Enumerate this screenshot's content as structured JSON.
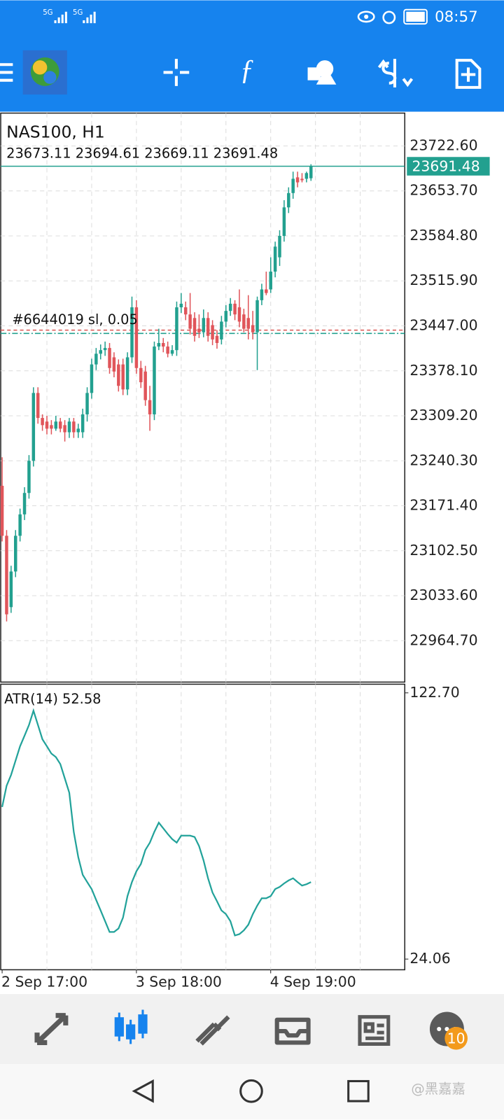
{
  "status_bar": {
    "network": [
      "5G",
      "5G"
    ],
    "time": "08:57"
  },
  "chart_data": [
    {
      "type": "candlestick",
      "title": "NAS100, H1",
      "open": [
        23202.0,
        23125.4,
        23016.1,
        23070.7,
        23125.4,
        23158.2,
        23191.0,
        23240.3,
        23344.2,
        23305.9,
        23300.4,
        23294.9,
        23289.5,
        23300.4,
        23294.9,
        23284.0,
        23300.4,
        23284.0,
        23284.0,
        23311.4,
        23344.2,
        23387.9,
        23404.3,
        23409.8,
        23413.1,
        23398.8,
        23387.9,
        23387.9,
        23349.6,
        23398.8,
        23475.4,
        23382.4,
        23377.0,
        23333.2,
        23311.4,
        23415.3,
        23420.7,
        23415.3,
        23404.3,
        23409.8,
        23475.4,
        23475.4,
        23464.5,
        23459.0,
        23442.6,
        23437.1,
        23459.0,
        23448.1,
        23431.7,
        23426.2,
        23453.5,
        23469.9,
        23480.9,
        23475.4,
        23464.5,
        23459.0,
        23448.1,
        23437.1,
        23486.3,
        23502.8,
        23502.8,
        23530.1,
        23552.0,
        23584.8,
        23628.5,
        23650.4,
        23674.5,
        23672.3,
        23672.3,
        23673.11
      ],
      "high": [
        23245.7,
        23134.2,
        23079.5,
        23134.2,
        23167.0,
        23199.8,
        23249.0,
        23352.9,
        23352.9,
        23311.4,
        23309.2,
        23302.6,
        23309.2,
        23305.9,
        23302.6,
        23305.9,
        23305.9,
        23297.1,
        23320.1,
        23352.9,
        23396.7,
        23413.1,
        23418.5,
        23422.9,
        23420.7,
        23406.5,
        23395.6,
        23396.7,
        23406.5,
        23491.8,
        23486.3,
        23393.4,
        23385.7,
        23355.1,
        23422.9,
        23442.6,
        23428.4,
        23422.9,
        23417.4,
        23484.2,
        23497.3,
        23484.2,
        23497.3,
        23467.8,
        23464.5,
        23472.1,
        23467.8,
        23455.7,
        23440.4,
        23462.3,
        23478.7,
        23489.6,
        23486.3,
        23502.8,
        23473.2,
        23494.0,
        23469.9,
        23491.8,
        23511.5,
        23530.1,
        23552.0,
        23576.0,
        23593.5,
        23639.5,
        23659.2,
        23683.2,
        23683.2,
        23681.0,
        23683.2,
        23694.61
      ],
      "low": [
        23116.7,
        22994.2,
        23007.3,
        23062.0,
        23116.7,
        23149.5,
        23182.3,
        23231.5,
        23297.1,
        23286.2,
        23280.7,
        23280.7,
        23286.2,
        23284.0,
        23269.8,
        23275.3,
        23275.3,
        23275.3,
        23275.3,
        23300.4,
        23335.4,
        23379.2,
        23395.6,
        23401.0,
        23373.7,
        23368.2,
        23346.4,
        23340.9,
        23340.9,
        23390.1,
        23373.7,
        23351.8,
        23324.5,
        23286.2,
        23302.6,
        23409.8,
        23406.5,
        23398.8,
        23401.0,
        23401.0,
        23466.7,
        23455.7,
        23433.8,
        23422.9,
        23428.4,
        23429.5,
        23422.9,
        23417.4,
        23412.0,
        23418.5,
        23444.8,
        23462.3,
        23455.7,
        23444.8,
        23437.1,
        23426.2,
        23426.2,
        23379.2,
        23478.7,
        23494.0,
        23497.3,
        23521.3,
        23538.8,
        23576.0,
        23619.8,
        23641.7,
        23659.2,
        23666.8,
        23666.8,
        23669.11
      ],
      "close": [
        23125.4,
        23005.1,
        23070.7,
        23125.4,
        23158.2,
        23191.0,
        23240.3,
        23344.2,
        23305.9,
        23294.9,
        23289.5,
        23289.5,
        23300.4,
        23289.5,
        23284.0,
        23300.4,
        23284.0,
        23289.5,
        23311.4,
        23344.2,
        23387.9,
        23404.3,
        23409.8,
        23413.1,
        23382.4,
        23377.0,
        23355.1,
        23349.6,
        23398.8,
        23475.4,
        23382.4,
        23360.6,
        23333.2,
        23311.4,
        23415.3,
        23420.7,
        23415.3,
        23404.3,
        23409.8,
        23475.4,
        23480.9,
        23464.5,
        23442.6,
        23431.7,
        23437.1,
        23459.0,
        23431.7,
        23426.2,
        23420.7,
        23453.5,
        23469.9,
        23480.9,
        23464.5,
        23453.5,
        23442.6,
        23442.6,
        23437.1,
        23486.3,
        23502.8,
        23497.3,
        23530.1,
        23568.4,
        23584.8,
        23628.5,
        23650.4,
        23672.3,
        23666.8,
        23670.1,
        23681.0,
        23691.48
      ],
      "up_color": "#22a08f",
      "down_color": "#e0555a",
      "ylim": [
        22901.3,
        23772.9
      ],
      "yticks": [
        {
          "value": 23722.6,
          "label": "23722.60"
        },
        {
          "value": 23653.7,
          "label": "23653.70"
        },
        {
          "value": 23584.8,
          "label": "23584.80"
        },
        {
          "value": 23515.9,
          "label": "23515.90"
        },
        {
          "value": 23447,
          "label": "23447.00"
        },
        {
          "value": 23378.1,
          "label": "23378.10"
        },
        {
          "value": 23309.2,
          "label": "23309.20"
        },
        {
          "value": 23240.3,
          "label": "23240.30"
        },
        {
          "value": 23171.4,
          "label": "23171.40"
        },
        {
          "value": 23102.5,
          "label": "23102.50"
        },
        {
          "value": 23033.6,
          "label": "23033.60"
        },
        {
          "value": 22964.7,
          "label": "22964.70"
        }
      ],
      "grid": true,
      "annotation": "#6644019 sl, 0.05",
      "levels": [
        {
          "value": 23440.4,
          "color": "#d9534f"
        },
        {
          "value": 23435.4,
          "color": "#22a08f"
        }
      ]
    },
    {
      "type": "line",
      "title": "ATR(14)",
      "categories": [
        "2 Sep 17:00",
        null,
        null,
        null,
        null,
        null,
        null,
        null,
        null,
        null,
        null,
        null,
        null,
        null,
        null,
        null,
        null,
        null,
        null,
        null,
        null,
        null,
        null,
        null,
        null,
        null,
        null,
        null,
        null,
        null,
        "3 Sep 18:00",
        null,
        null,
        null,
        null,
        null,
        null,
        null,
        null,
        null,
        null,
        null,
        null,
        null,
        null,
        null,
        null,
        null,
        null,
        null,
        null,
        null,
        null,
        null,
        null,
        null,
        null,
        null,
        null,
        null,
        "4 Sep 19:00",
        null,
        null,
        null,
        null,
        null,
        null,
        null,
        null,
        null
      ],
      "values": [
        80.4,
        88.3,
        92.3,
        97.6,
        102.9,
        106.8,
        110.8,
        116.1,
        110.8,
        105.5,
        102.9,
        100.2,
        98.9,
        96.3,
        91.0,
        85.7,
        71.2,
        61.9,
        55.3,
        52.6,
        50.0,
        46.0,
        42.1,
        38.1,
        34.1,
        34.1,
        35.4,
        39.4,
        47.4,
        52.6,
        56.6,
        59.3,
        64.5,
        67.2,
        71.2,
        74.6,
        72.5,
        70.4,
        68.5,
        67.2,
        69.8,
        69.8,
        69.8,
        69.3,
        65.9,
        60.6,
        54.0,
        48.7,
        45.5,
        42.1,
        40.7,
        38.1,
        32.8,
        33.3,
        34.7,
        36.8,
        40.7,
        43.9,
        46.6,
        46.6,
        47.4,
        50.0,
        50.8,
        52.1,
        53.2,
        54.0,
        52.6,
        51.3,
        51.8,
        52.58
      ],
      "color": "#22a29a",
      "ylim": [
        20.1,
        125.9
      ],
      "yticks": [
        {
          "value": 122.7,
          "label": "122.70"
        },
        24.06
      ]
    }
  ],
  "nav_badge": "10",
  "watermark": "@黑嘉嘉"
}
